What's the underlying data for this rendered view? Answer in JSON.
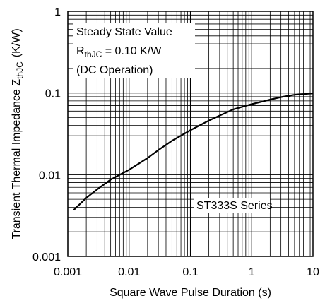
{
  "chart_data": {
    "type": "line",
    "xlabel": "Square Wave Pulse Duration (s)",
    "ylabel": "Transient Thermal Impedance Z",
    "ylabel_sub": "thJC",
    "ylabel_unit": "(K/W)",
    "x_scale": "log",
    "y_scale": "log",
    "xlim": [
      0.001,
      10
    ],
    "ylim": [
      0.001,
      1
    ],
    "x_tick_labels": [
      "0.001",
      "0.01",
      "0.1",
      "1",
      "10"
    ],
    "y_tick_labels": [
      "0.001",
      "0.01",
      "0.1",
      "1"
    ],
    "grid": true,
    "annotations": {
      "line1": "Steady State Value",
      "line2_main": "R",
      "line2_sub": "thJC",
      "line2_rest": " = 0.10 K/W",
      "line3": "(DC Operation)",
      "series_label": "ST333S Series"
    },
    "series": [
      {
        "x": [
          0.00125,
          0.002,
          0.003,
          0.005,
          0.01,
          0.02,
          0.03,
          0.05,
          0.1,
          0.2,
          0.3,
          0.5,
          1,
          2,
          3,
          5,
          10
        ],
        "y": [
          0.0037,
          0.0052,
          0.0066,
          0.0087,
          0.0115,
          0.016,
          0.02,
          0.026,
          0.035,
          0.046,
          0.053,
          0.063,
          0.073,
          0.083,
          0.089,
          0.095,
          0.099
        ]
      }
    ],
    "line_color": "#000000",
    "grid_color": "#000000"
  }
}
